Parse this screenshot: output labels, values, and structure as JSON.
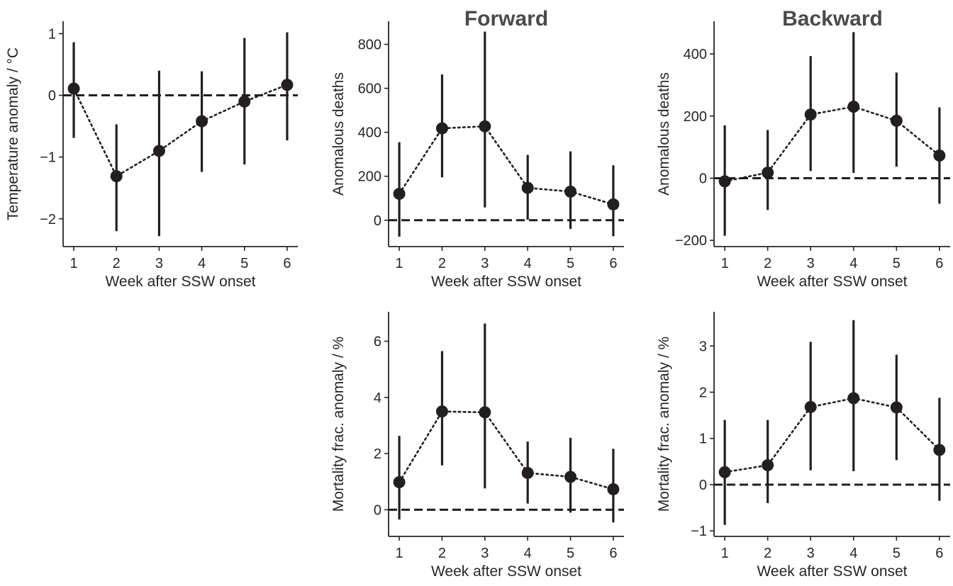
{
  "column_titles": [
    "Forward",
    "Backward"
  ],
  "colors": {
    "marker": "#231f20",
    "errorbar": "#231f20",
    "zero_line": "#231f20",
    "axis": "#262626"
  },
  "chart_data": [
    {
      "id": "temperature",
      "type": "scatter",
      "title": "",
      "xlabel": "Week after SSW onset",
      "ylabel": "Temperature anomaly / °C",
      "x": [
        1,
        2,
        3,
        4,
        5,
        6
      ],
      "xticks": [
        1,
        2,
        3,
        4,
        5,
        6
      ],
      "yticks": [
        -2,
        -1,
        0,
        1
      ],
      "ytick_labels": [
        "−2",
        "−1",
        "0",
        "1"
      ],
      "xlim": [
        0.75,
        6.25
      ],
      "ylim": [
        -2.45,
        1.2
      ],
      "reference_line": 0,
      "series": [
        {
          "values": [
            0.11,
            -1.31,
            -0.9,
            -0.42,
            -0.1,
            0.17
          ],
          "lower": [
            -0.69,
            -2.2,
            -2.28,
            -1.24,
            -1.12,
            -0.73
          ],
          "upper": [
            0.86,
            -0.47,
            0.4,
            0.39,
            0.93,
            1.02
          ]
        }
      ]
    },
    {
      "id": "forward-deaths",
      "type": "scatter",
      "title": "",
      "xlabel": "Week after SSW onset",
      "ylabel": "Anomalous deaths",
      "x": [
        1,
        2,
        3,
        4,
        5,
        6
      ],
      "xticks": [
        1,
        2,
        3,
        4,
        5,
        6
      ],
      "yticks": [
        0,
        200,
        400,
        600,
        800
      ],
      "ytick_labels": [
        "0",
        "200",
        "400",
        "600",
        "800"
      ],
      "xlim": [
        0.75,
        6.25
      ],
      "ylim": [
        -120,
        905
      ],
      "reference_line": 0,
      "series": [
        {
          "values": [
            120,
            418,
            427,
            147,
            130,
            72
          ],
          "lower": [
            -75,
            195,
            58,
            2,
            -40,
            -73
          ],
          "upper": [
            355,
            663,
            858,
            297,
            313,
            250
          ]
        }
      ]
    },
    {
      "id": "backward-deaths",
      "type": "scatter",
      "title": "",
      "xlabel": "Week after SSW onset",
      "ylabel": "Anomalous deaths",
      "x": [
        1,
        2,
        3,
        4,
        5,
        6
      ],
      "xticks": [
        1,
        2,
        3,
        4,
        5,
        6
      ],
      "yticks": [
        -200,
        0,
        200,
        400
      ],
      "ytick_labels": [
        "−200",
        "0",
        "200",
        "400"
      ],
      "xlim": [
        0.75,
        6.25
      ],
      "ylim": [
        -220,
        505
      ],
      "reference_line": 0,
      "series": [
        {
          "values": [
            -10,
            18,
            205,
            230,
            185,
            73
          ],
          "lower": [
            -185,
            -102,
            23,
            17,
            37,
            -82
          ],
          "upper": [
            170,
            155,
            393,
            470,
            340,
            228
          ]
        }
      ]
    },
    {
      "id": "forward-mortality",
      "type": "scatter",
      "title": "",
      "xlabel": "Week after SSW onset",
      "ylabel": "Mortality frac. anomaly / %",
      "x": [
        1,
        2,
        3,
        4,
        5,
        6
      ],
      "xticks": [
        1,
        2,
        3,
        4,
        5,
        6
      ],
      "yticks": [
        0,
        2,
        4,
        6
      ],
      "ytick_labels": [
        "0",
        "2",
        "4",
        "6"
      ],
      "xlim": [
        0.75,
        6.25
      ],
      "ylim": [
        -0.95,
        7.05
      ],
      "reference_line": 0,
      "series": [
        {
          "values": [
            0.98,
            3.5,
            3.47,
            1.31,
            1.17,
            0.73
          ],
          "lower": [
            -0.35,
            1.58,
            0.76,
            0.22,
            -0.1,
            -0.45
          ],
          "upper": [
            2.63,
            5.65,
            6.63,
            2.43,
            2.56,
            2.17
          ]
        }
      ]
    },
    {
      "id": "backward-mortality",
      "type": "scatter",
      "title": "",
      "xlabel": "Week after SSW onset",
      "ylabel": "Mortality frac. anomaly / %",
      "x": [
        1,
        2,
        3,
        4,
        5,
        6
      ],
      "xticks": [
        1,
        2,
        3,
        4,
        5,
        6
      ],
      "yticks": [
        -1,
        0,
        1,
        2,
        3
      ],
      "ytick_labels": [
        "−1",
        "0",
        "1",
        "2",
        "3"
      ],
      "xlim": [
        0.75,
        6.25
      ],
      "ylim": [
        -1.12,
        3.74
      ],
      "reference_line": 0,
      "series": [
        {
          "values": [
            0.27,
            0.42,
            1.68,
            1.87,
            1.67,
            0.75
          ],
          "lower": [
            -0.87,
            -0.4,
            0.31,
            0.29,
            0.53,
            -0.35
          ],
          "upper": [
            1.4,
            1.4,
            3.09,
            3.56,
            2.81,
            1.88
          ]
        }
      ]
    }
  ]
}
